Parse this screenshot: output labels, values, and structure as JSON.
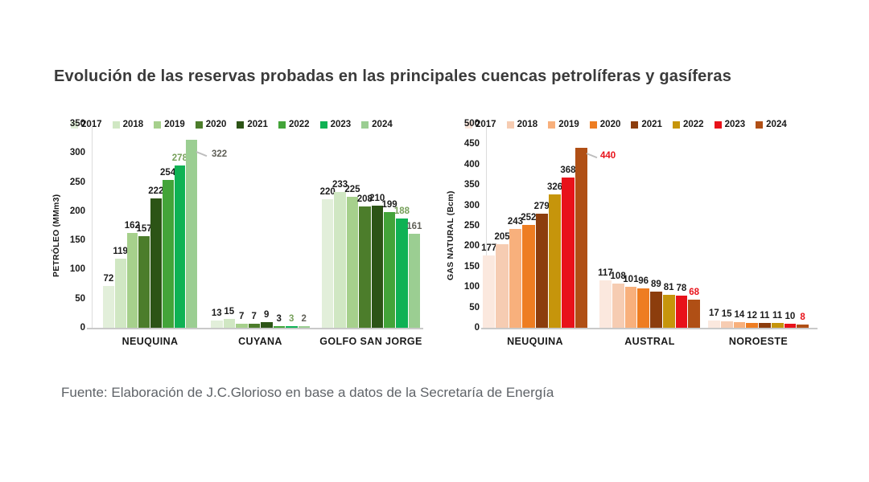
{
  "page": {
    "title": "Evolución de las reservas probadas en las principales cuencas petrolíferas y gasíferas",
    "source_note": "Fuente: Elaboración de J.C.Glorioso en base a datos de la Secretaría de Energía"
  },
  "colors": {
    "title_text": "#3a3a3a",
    "source_text": "#5f6368",
    "axis_line": "#c9c9c9",
    "tick_text": "#1a1a1a",
    "leader_line": "#bdbdbd"
  },
  "chart_data": [
    {
      "type": "bar",
      "name": "petroleo",
      "ylabel": "PETRÓLEO (MMm3)",
      "ylim": [
        0,
        350
      ],
      "ytick_step": 50,
      "grid": false,
      "legend_position": "top",
      "categories": [
        "NEUQUINA",
        "CUYANA",
        "GOLFO SAN JORGE"
      ],
      "series_colors": [
        "#e2efda",
        "#d0e7c3",
        "#a6d08c",
        "#4c7d2b",
        "#2c5416",
        "#43a439",
        "#0fb254",
        "#9bce92"
      ],
      "value_label_colors": [
        "#1c1c1c",
        "#1c1c1c",
        "#1c1c1c",
        "#1c1c1c",
        "#1c1c1c",
        "#1c1c1c",
        "#76a05a",
        "#5f5f57"
      ],
      "series": [
        {
          "name": "2017",
          "values": [
            72,
            13,
            220
          ]
        },
        {
          "name": "2018",
          "values": [
            119,
            15,
            233
          ]
        },
        {
          "name": "2019",
          "values": [
            162,
            7,
            225
          ]
        },
        {
          "name": "2020",
          "values": [
            157,
            7,
            208
          ]
        },
        {
          "name": "2021",
          "values": [
            222,
            9,
            210
          ]
        },
        {
          "name": "2022",
          "values": [
            254,
            3,
            199
          ]
        },
        {
          "name": "2023",
          "values": [
            278,
            3,
            188
          ]
        },
        {
          "name": "2024",
          "values": [
            322,
            2,
            161
          ]
        }
      ],
      "callouts": [
        {
          "category": "NEUQUINA",
          "year": "2024"
        }
      ]
    },
    {
      "type": "bar",
      "name": "gas-natural",
      "ylabel": "GAS NATURAL (Bcm)",
      "ylim": [
        0,
        500
      ],
      "ytick_step": 50,
      "grid": false,
      "legend_position": "top",
      "categories": [
        "NEUQUINA",
        "AUSTRAL",
        "NOROESTE"
      ],
      "series_colors": [
        "#fbe8de",
        "#f6ccb2",
        "#f8b07c",
        "#ee7d22",
        "#8c3d0d",
        "#c6950b",
        "#e8121a",
        "#b04f15"
      ],
      "value_label_colors": [
        "#1c1c1c",
        "#1c1c1c",
        "#1c1c1c",
        "#1c1c1c",
        "#1c1c1c",
        "#1c1c1c",
        "#1c1c1c",
        "#e8121a"
      ],
      "series": [
        {
          "name": "2017",
          "values": [
            177,
            117,
            17
          ]
        },
        {
          "name": "2018",
          "values": [
            205,
            108,
            15
          ]
        },
        {
          "name": "2019",
          "values": [
            243,
            101,
            14
          ]
        },
        {
          "name": "2020",
          "values": [
            252,
            96,
            12
          ]
        },
        {
          "name": "2021",
          "values": [
            279,
            89,
            11
          ]
        },
        {
          "name": "2022",
          "values": [
            326,
            81,
            11
          ]
        },
        {
          "name": "2023",
          "values": [
            368,
            78,
            10
          ]
        },
        {
          "name": "2024",
          "values": [
            440,
            68,
            8
          ]
        }
      ],
      "callouts": [
        {
          "category": "NEUQUINA",
          "year": "2024"
        }
      ]
    }
  ]
}
